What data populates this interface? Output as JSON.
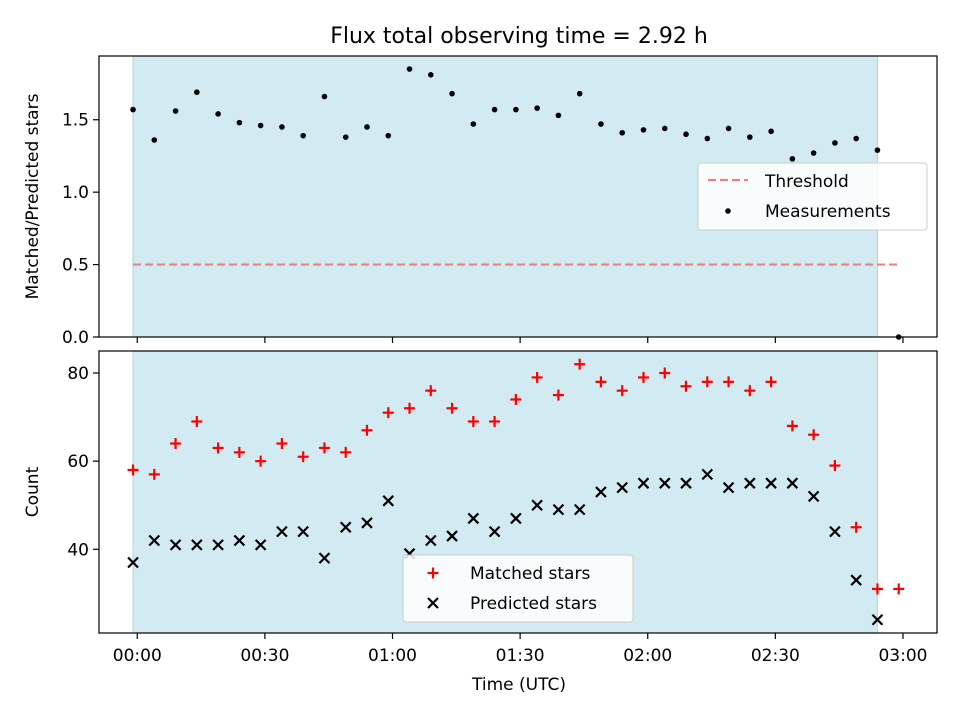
{
  "figure": {
    "title": "Flux total observing time = 2.92 h",
    "xlabel": "Time (UTC)"
  },
  "colors": {
    "shade": "#add8e6",
    "threshold": "#f08080",
    "measurements": "#000000",
    "matched": "#ff0000",
    "predicted": "#000000"
  },
  "chart_data": [
    {
      "type": "scatter",
      "panel": "top",
      "ylabel": "Matched/Predicted stars",
      "xlim": [
        "23:51",
        "03:08"
      ],
      "ylim": [
        0,
        1.94
      ],
      "xticks": [
        "00:00",
        "00:30",
        "01:00",
        "01:30",
        "02:00",
        "02:30",
        "03:00"
      ],
      "yticks": [
        "0.0",
        "0.5",
        "1.0",
        "1.5"
      ],
      "shaded_interval": [
        "23:59",
        "02:54"
      ],
      "threshold": {
        "name": "Threshold",
        "style": "dashed",
        "x": [
          "23:59",
          "02:59"
        ],
        "y": 0.5
      },
      "legend": {
        "loc": "center right",
        "entries": [
          "Threshold",
          "Measurements"
        ]
      },
      "series": [
        {
          "name": "Measurements",
          "marker": "dot",
          "x": [
            "23:59",
            "00:04",
            "00:09",
            "00:14",
            "00:19",
            "00:24",
            "00:29",
            "00:34",
            "00:39",
            "00:44",
            "00:49",
            "00:54",
            "00:59",
            "01:04",
            "01:09",
            "01:14",
            "01:19",
            "01:24",
            "01:29",
            "01:34",
            "01:39",
            "01:44",
            "01:49",
            "01:54",
            "01:59",
            "02:04",
            "02:09",
            "02:14",
            "02:19",
            "02:24",
            "02:29",
            "02:34",
            "02:39",
            "02:44",
            "02:49",
            "02:54",
            "02:59"
          ],
          "values": [
            1.57,
            1.36,
            1.56,
            1.69,
            1.54,
            1.48,
            1.46,
            1.45,
            1.39,
            1.66,
            1.38,
            1.45,
            1.39,
            1.85,
            1.81,
            1.68,
            1.47,
            1.57,
            1.57,
            1.58,
            1.53,
            1.68,
            1.47,
            1.41,
            1.43,
            1.44,
            1.4,
            1.37,
            1.44,
            1.38,
            1.42,
            1.23,
            1.27,
            1.34,
            1.37,
            1.29,
            0.0
          ]
        }
      ]
    },
    {
      "type": "scatter",
      "panel": "bottom",
      "ylabel": "Count",
      "xlabel": "Time (UTC)",
      "xlim": [
        "23:51",
        "03:08"
      ],
      "ylim": [
        21,
        85
      ],
      "xticks": [
        "00:00",
        "00:30",
        "01:00",
        "01:30",
        "02:00",
        "02:30",
        "03:00"
      ],
      "yticks": [
        "40",
        "60",
        "80"
      ],
      "shaded_interval": [
        "23:59",
        "02:54"
      ],
      "legend": {
        "loc": "lower center",
        "entries": [
          "Matched stars",
          "Predicted stars"
        ]
      },
      "series": [
        {
          "name": "Matched stars",
          "marker": "plus",
          "x": [
            "23:59",
            "00:04",
            "00:09",
            "00:14",
            "00:19",
            "00:24",
            "00:29",
            "00:34",
            "00:39",
            "00:44",
            "00:49",
            "00:54",
            "00:59",
            "01:04",
            "01:09",
            "01:14",
            "01:19",
            "01:24",
            "01:29",
            "01:34",
            "01:39",
            "01:44",
            "01:49",
            "01:54",
            "01:59",
            "02:04",
            "02:09",
            "02:14",
            "02:19",
            "02:24",
            "02:29",
            "02:34",
            "02:39",
            "02:44",
            "02:49",
            "02:54",
            "02:59"
          ],
          "values": [
            58,
            57,
            64,
            69,
            63,
            62,
            60,
            64,
            61,
            63,
            62,
            67,
            71,
            72,
            76,
            72,
            69,
            69,
            74,
            79,
            75,
            82,
            78,
            76,
            79,
            80,
            77,
            78,
            78,
            76,
            78,
            68,
            66,
            59,
            45,
            31,
            31
          ]
        },
        {
          "name": "Predicted stars",
          "marker": "x",
          "x": [
            "23:59",
            "00:04",
            "00:09",
            "00:14",
            "00:19",
            "00:24",
            "00:29",
            "00:34",
            "00:39",
            "00:44",
            "00:49",
            "00:54",
            "00:59",
            "01:04",
            "01:09",
            "01:14",
            "01:19",
            "01:24",
            "01:29",
            "01:34",
            "01:39",
            "01:44",
            "01:49",
            "01:54",
            "01:59",
            "02:04",
            "02:09",
            "02:14",
            "02:19",
            "02:24",
            "02:29",
            "02:34",
            "02:39",
            "02:44",
            "02:49",
            "02:54"
          ],
          "values": [
            37,
            42,
            41,
            41,
            41,
            42,
            41,
            44,
            44,
            38,
            45,
            46,
            51,
            39,
            42,
            43,
            47,
            44,
            47,
            50,
            49,
            49,
            53,
            54,
            55,
            55,
            55,
            57,
            54,
            55,
            55,
            55,
            52,
            44,
            33,
            24
          ]
        }
      ]
    }
  ]
}
